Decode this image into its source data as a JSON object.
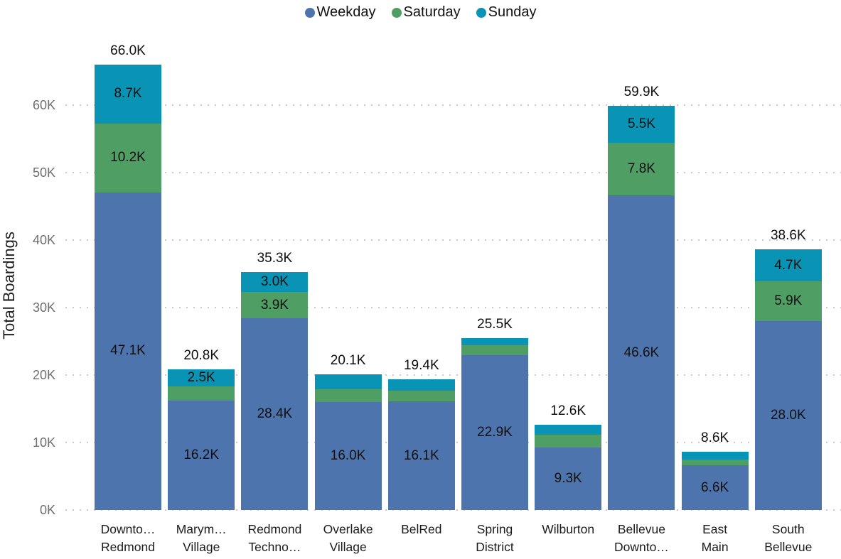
{
  "chart_data": {
    "type": "bar",
    "stacked": true,
    "title": "",
    "xlabel": "",
    "ylabel": "Total Boardings",
    "ylim": [
      0,
      70
    ],
    "grid": "horizontal-dotted",
    "legend_position": "top-center",
    "yticks": [
      {
        "value": 0,
        "label": "0K"
      },
      {
        "value": 10,
        "label": "10K"
      },
      {
        "value": 20,
        "label": "20K"
      },
      {
        "value": 30,
        "label": "30K"
      },
      {
        "value": 40,
        "label": "40K"
      },
      {
        "value": 50,
        "label": "50K"
      },
      {
        "value": 60,
        "label": "60K"
      }
    ],
    "categories": [
      "Downto… Redmond",
      "Marym… Village",
      "Redmond Techno…",
      "Overlake Village",
      "BelRed",
      "Spring District",
      "Wilburton",
      "Bellevue Downto…",
      "East Main",
      "South Bellevue"
    ],
    "category_lines": [
      [
        "Downto…",
        "Redmond"
      ],
      [
        "Marym…",
        "Village"
      ],
      [
        "Redmond",
        "Techno…"
      ],
      [
        "Overlake",
        "Village"
      ],
      [
        "BelRed"
      ],
      [
        "Spring",
        "District"
      ],
      [
        "Wilburton"
      ],
      [
        "Bellevue",
        "Downto…"
      ],
      [
        "East",
        "Main"
      ],
      [
        "South",
        "Bellevue"
      ]
    ],
    "series": [
      {
        "name": "Weekday",
        "color": "#4e74ae",
        "values": [
          47.1,
          16.2,
          28.4,
          16.0,
          16.1,
          22.9,
          9.3,
          46.6,
          6.6,
          28.0
        ],
        "labels": [
          "47.1K",
          "16.2K",
          "28.4K",
          "16.0K",
          "16.1K",
          "22.9K",
          "9.3K",
          "46.6K",
          "6.6K",
          "28.0K"
        ]
      },
      {
        "name": "Saturday",
        "color": "#4f9e63",
        "values": [
          10.2,
          2.1,
          3.9,
          1.9,
          1.6,
          1.5,
          1.9,
          7.8,
          0.9,
          5.9
        ],
        "labels": [
          "10.2K",
          null,
          "3.9K",
          null,
          null,
          null,
          null,
          "7.8K",
          null,
          "5.9K"
        ]
      },
      {
        "name": "Sunday",
        "color": "#0994b5",
        "values": [
          8.7,
          2.5,
          3.0,
          2.2,
          1.7,
          1.1,
          1.4,
          5.5,
          1.1,
          4.7
        ],
        "labels": [
          "8.7K",
          "2.5K",
          "3.0K",
          null,
          null,
          null,
          null,
          "5.5K",
          null,
          "4.7K"
        ]
      }
    ],
    "totals": [
      "66.0K",
      "20.8K",
      "35.3K",
      "20.1K",
      "19.4K",
      "25.5K",
      "12.6K",
      "59.9K",
      "8.6K",
      "38.6K"
    ]
  }
}
